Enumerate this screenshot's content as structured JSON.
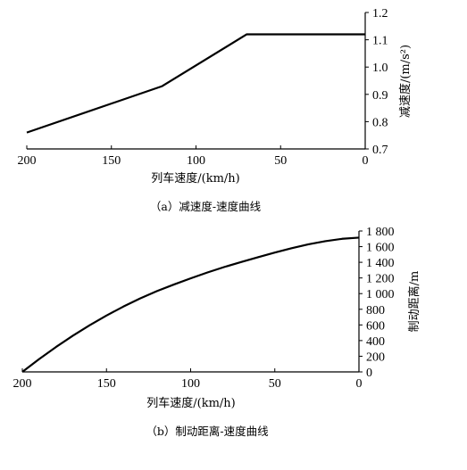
{
  "chart_data": [
    {
      "type": "line",
      "title": "",
      "xlabel": "列车速度/(km/h)",
      "ylabel": "减速度/(m/s²)",
      "caption": "（a）减速度-速度曲线",
      "xlim": [
        200,
        0
      ],
      "ylim": [
        0.7,
        1.2
      ],
      "x_reversed": true,
      "y_axis_side": "right",
      "grid": false,
      "xticks": [
        200,
        150,
        100,
        50,
        0
      ],
      "xtick_labels": [
        "200",
        "150",
        "100",
        "50",
        "0"
      ],
      "yticks": [
        0.7,
        0.8,
        0.9,
        1.0,
        1.1,
        1.2
      ],
      "ytick_labels": [
        "0.7",
        "0.8",
        "0.9",
        "1.0",
        "1.1",
        "1.2"
      ],
      "series": [
        {
          "x": [
            200,
            120,
            70,
            0
          ],
          "y": [
            0.76,
            0.93,
            1.12,
            1.12
          ]
        }
      ]
    },
    {
      "type": "line",
      "title": "",
      "xlabel": "列车速度/(km/h)",
      "ylabel": "制动距离/m",
      "caption": "（b）制动距离-速度曲线",
      "xlim": [
        200,
        0
      ],
      "ylim": [
        0,
        1800
      ],
      "x_reversed": true,
      "y_axis_side": "right",
      "grid": false,
      "xticks": [
        200,
        150,
        100,
        50,
        0
      ],
      "xtick_labels": [
        "200",
        "150",
        "100",
        "50",
        "0"
      ],
      "yticks": [
        0,
        200,
        400,
        600,
        800,
        1000,
        1200,
        1400,
        1600,
        1800
      ],
      "ytick_labels": [
        "0",
        "200",
        "400",
        "600",
        "800",
        "1 000",
        "1 200",
        "1 400",
        "1 600",
        "1 800"
      ],
      "series": [
        {
          "x": [
            200,
            190,
            180,
            170,
            160,
            150,
            140,
            130,
            120,
            110,
            100,
            90,
            80,
            70,
            60,
            50,
            40,
            30,
            20,
            10,
            0
          ],
          "y": [
            0,
            164,
            318,
            462,
            596,
            720,
            834,
            938,
            1032,
            1116,
            1195,
            1270,
            1340,
            1403,
            1465,
            1525,
            1580,
            1630,
            1670,
            1700,
            1715
          ]
        }
      ]
    }
  ]
}
